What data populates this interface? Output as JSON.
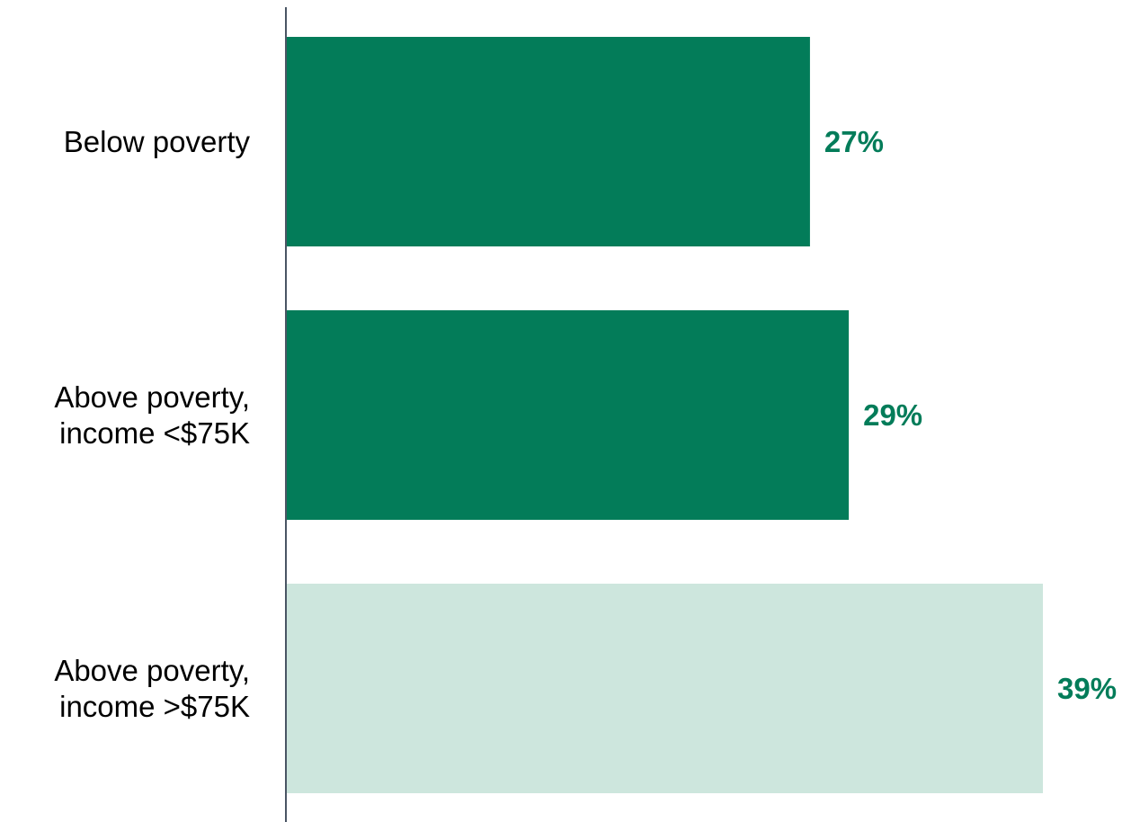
{
  "chart_data": {
    "type": "bar",
    "orientation": "horizontal",
    "categories": [
      [
        "Below poverty"
      ],
      [
        "Above poverty,",
        "income <$75K"
      ],
      [
        "Above poverty,",
        "income >$75K"
      ]
    ],
    "values": [
      27,
      29,
      39
    ],
    "value_labels": [
      "27%",
      "29%",
      "39%"
    ],
    "xlim": [
      0,
      39
    ],
    "grid": false,
    "legend": "none",
    "colors": {
      "bars": [
        "#037c59",
        "#037c59",
        "#cde6dd"
      ],
      "value_label": "#037c59",
      "axis": "#4a5564"
    }
  }
}
